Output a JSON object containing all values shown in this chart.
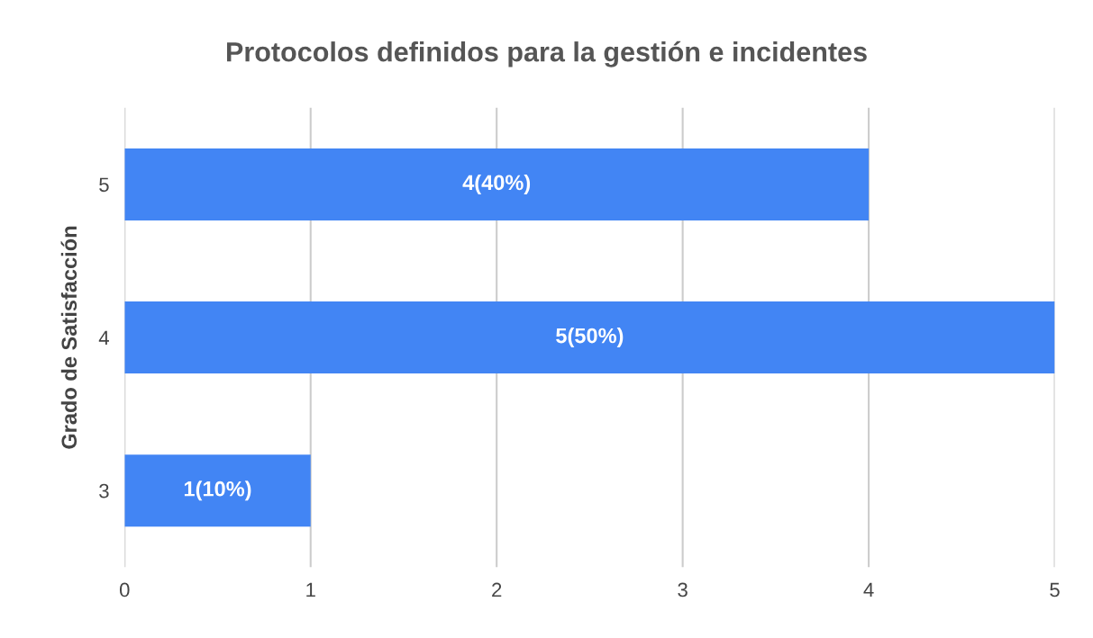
{
  "chart_data": {
    "type": "bar",
    "orientation": "horizontal",
    "title": "Protocolos definidos para la gestión e incidentes",
    "ylabel": "Grado de Satisfacción",
    "categories": [
      "5",
      "4",
      "3"
    ],
    "values": [
      4,
      5,
      1
    ],
    "color": "#4285f4",
    "value_labels": [
      "4(40%)",
      "5(50%)",
      "1(10%)"
    ],
    "xlim": [
      0,
      5
    ],
    "xticks": [
      0,
      1,
      2,
      3,
      4,
      5
    ],
    "grid": "x",
    "legend": false
  }
}
